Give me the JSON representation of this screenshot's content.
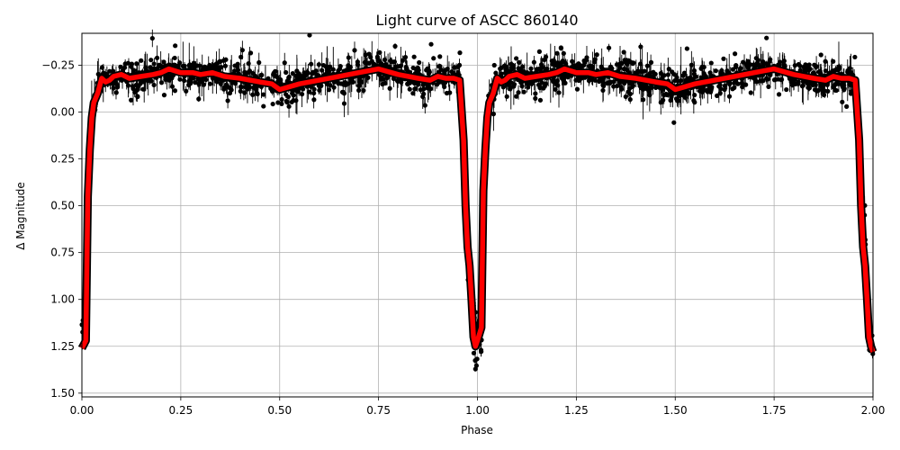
{
  "chart_data": {
    "type": "scatter",
    "title": "Light curve of ASCC 860140",
    "xlabel": "Phase",
    "ylabel": "Δ Magnitude",
    "xlim": [
      0.0,
      2.0
    ],
    "ylim": [
      1.52,
      -0.42
    ],
    "y_inverted": true,
    "grid": true,
    "x_ticks": [
      0.0,
      0.25,
      0.5,
      0.75,
      1.0,
      1.25,
      1.5,
      1.75,
      2.0
    ],
    "x_tick_labels": [
      "0.00",
      "0.25",
      "0.50",
      "0.75",
      "1.00",
      "1.25",
      "1.50",
      "1.75",
      "2.00"
    ],
    "y_ticks": [
      -0.25,
      0.0,
      0.25,
      0.5,
      0.75,
      1.0,
      1.25,
      1.5
    ],
    "y_tick_labels": [
      "−0.25",
      "0.00",
      "0.25",
      "0.50",
      "0.75",
      "1.00",
      "1.25",
      "1.50"
    ],
    "series": [
      {
        "kind": "binned_model",
        "color": "#ff0000",
        "x": [
          0.0,
          0.01,
          0.015,
          0.02,
          0.025,
          0.03,
          0.04,
          0.05,
          0.06,
          0.07,
          0.08,
          0.1,
          0.12,
          0.15,
          0.18,
          0.2,
          0.22,
          0.25,
          0.28,
          0.3,
          0.33,
          0.36,
          0.4,
          0.45,
          0.48,
          0.5,
          0.55,
          0.6,
          0.65,
          0.7,
          0.75,
          0.8,
          0.85,
          0.88,
          0.9,
          0.92,
          0.94,
          0.955,
          0.965,
          0.97,
          0.975,
          0.98,
          0.985,
          0.99,
          0.995,
          1.0,
          1.01,
          1.015,
          1.02,
          1.025,
          1.03,
          1.04,
          1.05,
          1.06,
          1.07,
          1.08,
          1.1,
          1.12,
          1.15,
          1.18,
          1.2,
          1.22,
          1.25,
          1.28,
          1.3,
          1.33,
          1.36,
          1.4,
          1.45,
          1.48,
          1.5,
          1.55,
          1.6,
          1.65,
          1.7,
          1.75,
          1.8,
          1.85,
          1.88,
          1.9,
          1.92,
          1.94,
          1.955,
          1.965,
          1.97,
          1.975,
          1.98,
          1.985,
          1.99,
          1.995,
          2.0
        ],
        "y": [
          1.26,
          1.22,
          0.45,
          0.2,
          0.03,
          -0.05,
          -0.1,
          -0.18,
          -0.16,
          -0.17,
          -0.19,
          -0.2,
          -0.18,
          -0.19,
          -0.2,
          -0.21,
          -0.23,
          -0.21,
          -0.21,
          -0.2,
          -0.21,
          -0.19,
          -0.18,
          -0.16,
          -0.15,
          -0.12,
          -0.15,
          -0.17,
          -0.19,
          -0.21,
          -0.23,
          -0.2,
          -0.18,
          -0.17,
          -0.19,
          -0.18,
          -0.18,
          -0.17,
          0.15,
          0.5,
          0.72,
          0.82,
          1.0,
          1.2,
          1.25,
          1.22,
          1.15,
          0.42,
          0.2,
          0.03,
          -0.05,
          -0.1,
          -0.18,
          -0.16,
          -0.17,
          -0.19,
          -0.2,
          -0.18,
          -0.19,
          -0.2,
          -0.21,
          -0.23,
          -0.21,
          -0.21,
          -0.2,
          -0.21,
          -0.19,
          -0.18,
          -0.16,
          -0.15,
          -0.12,
          -0.15,
          -0.17,
          -0.19,
          -0.21,
          -0.23,
          -0.2,
          -0.18,
          -0.17,
          -0.19,
          -0.18,
          -0.18,
          -0.17,
          0.15,
          0.5,
          0.72,
          0.82,
          1.0,
          1.2,
          1.25,
          1.28
        ]
      },
      {
        "kind": "observations",
        "color": "#000000",
        "point_count": 1800,
        "scatter_std": 0.04,
        "error_bar_std": 0.05,
        "outlier_rate": 0.06
      }
    ]
  }
}
